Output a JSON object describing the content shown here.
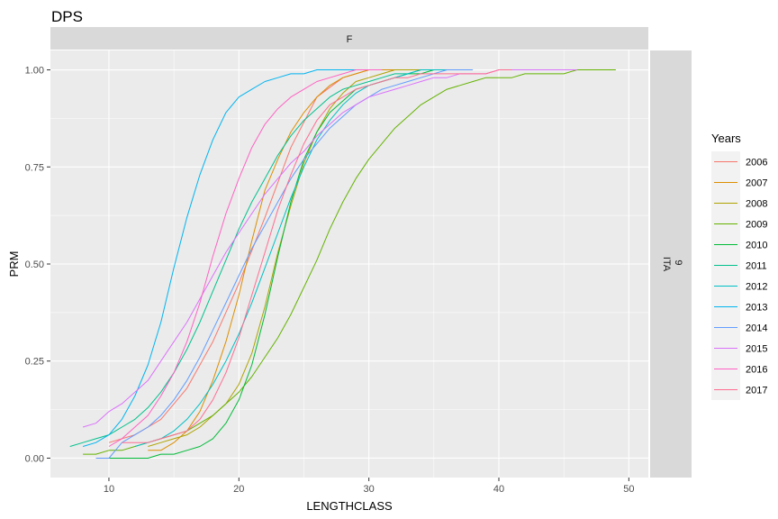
{
  "chart_data": {
    "type": "line",
    "title": "DPS",
    "facet_col_label": "F",
    "facet_row_label": "9\nITA",
    "xlabel": "LENGTHCLASS",
    "ylabel": "PRM",
    "xlim": [
      5.5,
      51.5
    ],
    "ylim": [
      -0.05,
      1.05
    ],
    "x_ticks": [
      10,
      20,
      30,
      40,
      50
    ],
    "x_tick_labels": [
      "10",
      "20",
      "30",
      "40",
      "50"
    ],
    "y_ticks": [
      0,
      0.25,
      0.5,
      0.75,
      1
    ],
    "y_tick_labels": [
      "0.00",
      "0.25",
      "0.50",
      "0.75",
      "1.00"
    ],
    "grid": true,
    "legend_title": "Years",
    "legend_position": "right",
    "series": [
      {
        "name": "2006",
        "color": "#F8766D",
        "x": [
          10,
          12,
          14,
          16,
          18,
          20,
          22,
          24,
          26,
          28,
          30,
          32,
          36
        ],
        "y": [
          0.04,
          0.06,
          0.1,
          0.18,
          0.3,
          0.45,
          0.62,
          0.8,
          0.93,
          0.98,
          1.0,
          1.0,
          1.0
        ]
      },
      {
        "name": "2007",
        "color": "#DB8E00",
        "x": [
          13,
          14,
          15,
          16,
          17,
          18,
          19,
          20,
          21,
          22,
          23,
          24,
          25,
          26,
          27,
          28,
          29,
          30,
          31,
          36
        ],
        "y": [
          0.02,
          0.02,
          0.04,
          0.07,
          0.12,
          0.2,
          0.3,
          0.42,
          0.56,
          0.69,
          0.77,
          0.84,
          0.89,
          0.93,
          0.96,
          0.98,
          0.99,
          1.0,
          1.0,
          1.0
        ]
      },
      {
        "name": "2008",
        "color": "#AEA200",
        "x": [
          13,
          14,
          15,
          16,
          17,
          18,
          19,
          20,
          21,
          22,
          23,
          24,
          25,
          26,
          27,
          28,
          29,
          30,
          31,
          32,
          36
        ],
        "y": [
          0.03,
          0.04,
          0.05,
          0.06,
          0.08,
          0.11,
          0.14,
          0.19,
          0.27,
          0.39,
          0.53,
          0.65,
          0.76,
          0.84,
          0.9,
          0.94,
          0.97,
          0.98,
          0.99,
          1.0,
          1.0
        ]
      },
      {
        "name": "2009",
        "color": "#64B200",
        "x": [
          8,
          9,
          10,
          11,
          12,
          13,
          14,
          15,
          16,
          17,
          18,
          19,
          20,
          21,
          22,
          23,
          24,
          25,
          26,
          27,
          28,
          29,
          30,
          31,
          32,
          33,
          34,
          35,
          36,
          37,
          38,
          39,
          40,
          41,
          42,
          43,
          44,
          45,
          46,
          47,
          48,
          49
        ],
        "y": [
          0.01,
          0.01,
          0.02,
          0.02,
          0.03,
          0.04,
          0.05,
          0.06,
          0.07,
          0.09,
          0.11,
          0.14,
          0.17,
          0.21,
          0.26,
          0.31,
          0.37,
          0.44,
          0.51,
          0.59,
          0.66,
          0.72,
          0.77,
          0.81,
          0.85,
          0.88,
          0.91,
          0.93,
          0.95,
          0.96,
          0.97,
          0.98,
          0.98,
          0.98,
          0.99,
          0.99,
          0.99,
          0.99,
          1.0,
          1.0,
          1.0,
          1.0
        ]
      },
      {
        "name": "2010",
        "color": "#00BA38",
        "x": [
          10,
          11,
          12,
          13,
          14,
          15,
          16,
          17,
          18,
          19,
          20,
          21,
          22,
          23,
          24,
          25,
          26,
          27,
          28,
          29,
          30,
          31,
          32,
          33,
          34,
          35,
          36
        ],
        "y": [
          0.0,
          0.0,
          0.0,
          0.0,
          0.01,
          0.01,
          0.02,
          0.03,
          0.05,
          0.09,
          0.15,
          0.24,
          0.37,
          0.52,
          0.66,
          0.77,
          0.84,
          0.89,
          0.92,
          0.95,
          0.96,
          0.97,
          0.98,
          0.99,
          0.99,
          1.0,
          1.0
        ]
      },
      {
        "name": "2011",
        "color": "#00C08B",
        "x": [
          7,
          8,
          9,
          10,
          11,
          12,
          13,
          14,
          15,
          16,
          17,
          18,
          19,
          20,
          21,
          22,
          23,
          24,
          25,
          26,
          27,
          28,
          29,
          30,
          31,
          32,
          33,
          34,
          35,
          36
        ],
        "y": [
          0.03,
          0.04,
          0.05,
          0.06,
          0.08,
          0.1,
          0.13,
          0.17,
          0.22,
          0.28,
          0.35,
          0.43,
          0.51,
          0.59,
          0.66,
          0.72,
          0.78,
          0.83,
          0.87,
          0.9,
          0.93,
          0.95,
          0.96,
          0.97,
          0.98,
          0.99,
          0.99,
          1.0,
          1.0,
          1.0
        ]
      },
      {
        "name": "2012",
        "color": "#00BFC4",
        "x": [
          12,
          13,
          14,
          15,
          16,
          17,
          18,
          19,
          20,
          21,
          22,
          23,
          24,
          25,
          26,
          27,
          28,
          29,
          30,
          31,
          32,
          33,
          34,
          35,
          36
        ],
        "y": [
          0.03,
          0.04,
          0.05,
          0.07,
          0.1,
          0.14,
          0.19,
          0.25,
          0.32,
          0.4,
          0.49,
          0.58,
          0.67,
          0.75,
          0.82,
          0.87,
          0.91,
          0.94,
          0.96,
          0.97,
          0.98,
          0.99,
          1.0,
          1.0,
          1.0
        ]
      },
      {
        "name": "2013",
        "color": "#00B4F0",
        "x": [
          8,
          9,
          10,
          11,
          12,
          13,
          14,
          15,
          16,
          17,
          18,
          19,
          20,
          21,
          22,
          23,
          24,
          25,
          26,
          27,
          28,
          29,
          30,
          31
        ],
        "y": [
          0.03,
          0.04,
          0.06,
          0.1,
          0.16,
          0.24,
          0.35,
          0.49,
          0.62,
          0.73,
          0.82,
          0.89,
          0.93,
          0.95,
          0.97,
          0.98,
          0.99,
          0.99,
          1.0,
          1.0,
          1.0,
          1.0,
          1.0,
          1.0
        ]
      },
      {
        "name": "2014",
        "color": "#619CFF",
        "x": [
          9,
          10,
          11,
          12,
          13,
          14,
          15,
          16,
          17,
          18,
          19,
          20,
          21,
          22,
          23,
          24,
          25,
          26,
          27,
          28,
          29,
          30,
          31,
          32,
          33,
          34,
          35,
          36,
          37,
          38
        ],
        "y": [
          0.0,
          0.0,
          0.04,
          0.06,
          0.08,
          0.11,
          0.15,
          0.2,
          0.26,
          0.33,
          0.4,
          0.47,
          0.54,
          0.6,
          0.66,
          0.72,
          0.77,
          0.81,
          0.85,
          0.88,
          0.91,
          0.93,
          0.95,
          0.96,
          0.97,
          0.98,
          0.99,
          1.0,
          1.0,
          1.0
        ]
      },
      {
        "name": "2015",
        "color": "#DB72FB",
        "x": [
          8,
          9,
          10,
          11,
          12,
          13,
          14,
          15,
          16,
          17,
          18,
          19,
          20,
          21,
          22,
          23,
          24,
          25,
          26,
          27,
          28,
          29,
          30,
          31,
          32,
          33,
          34,
          35,
          36,
          37,
          38,
          39,
          40,
          41,
          42,
          43,
          44,
          45,
          46
        ],
        "y": [
          0.08,
          0.09,
          0.12,
          0.14,
          0.17,
          0.2,
          0.25,
          0.3,
          0.35,
          0.41,
          0.47,
          0.53,
          0.58,
          0.63,
          0.68,
          0.72,
          0.76,
          0.79,
          0.83,
          0.86,
          0.89,
          0.91,
          0.93,
          0.94,
          0.95,
          0.96,
          0.97,
          0.98,
          0.98,
          0.99,
          0.99,
          0.99,
          1.0,
          1.0,
          1.0,
          1.0,
          1.0,
          1.0,
          1.0
        ]
      },
      {
        "name": "2016",
        "color": "#FF61C3",
        "x": [
          10,
          11,
          12,
          13,
          14,
          15,
          16,
          17,
          18,
          19,
          20,
          21,
          22,
          23,
          24,
          25,
          26,
          27,
          28,
          29,
          30,
          31
        ],
        "y": [
          0.03,
          0.05,
          0.08,
          0.11,
          0.16,
          0.22,
          0.3,
          0.4,
          0.52,
          0.63,
          0.72,
          0.8,
          0.86,
          0.9,
          0.93,
          0.95,
          0.97,
          0.98,
          0.99,
          1.0,
          1.0,
          1.0
        ]
      },
      {
        "name": "2017",
        "color": "#FF6C91",
        "x": [
          11,
          12,
          13,
          14,
          15,
          16,
          17,
          18,
          19,
          20,
          21,
          22,
          23,
          24,
          25,
          26,
          27,
          28,
          29,
          30,
          31,
          32,
          33,
          34,
          35,
          36,
          37,
          38,
          39,
          40,
          41
        ],
        "y": [
          0.04,
          0.04,
          0.04,
          0.05,
          0.06,
          0.07,
          0.1,
          0.15,
          0.22,
          0.31,
          0.42,
          0.53,
          0.64,
          0.73,
          0.81,
          0.87,
          0.91,
          0.93,
          0.95,
          0.96,
          0.97,
          0.98,
          0.98,
          0.99,
          0.99,
          0.99,
          0.99,
          0.99,
          0.99,
          1.0,
          1.0
        ]
      }
    ]
  }
}
